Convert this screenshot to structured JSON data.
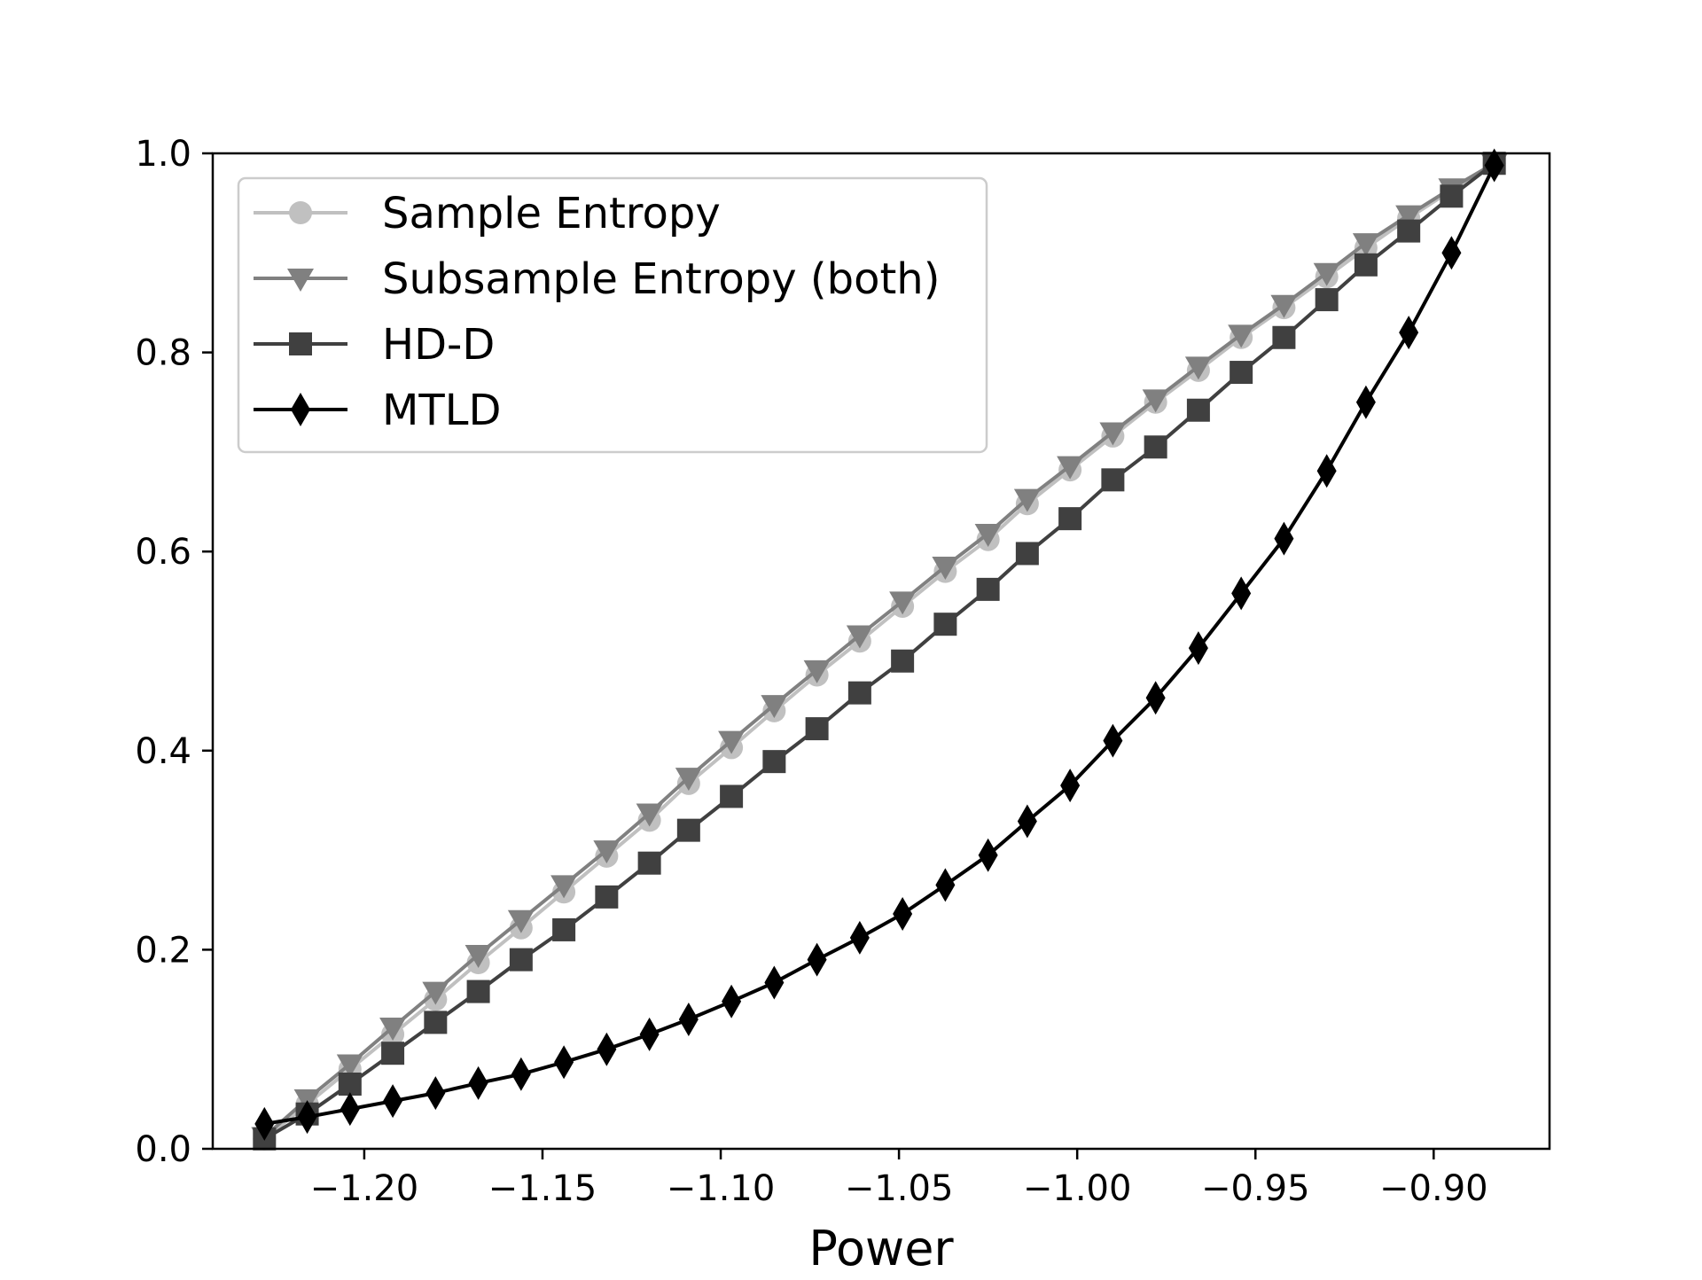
{
  "chart_data": {
    "type": "line",
    "title": "",
    "xlabel": "Power",
    "ylabel": "",
    "xlim": [
      -1.2425,
      -0.8675
    ],
    "ylim": [
      0.0,
      1.0
    ],
    "x_ticks": [
      -1.2,
      -1.15,
      -1.1,
      -1.05,
      -1.0,
      -0.95,
      -0.9
    ],
    "x_tick_labels": [
      "−1.20",
      "−1.15",
      "−1.10",
      "−1.05",
      "−1.00",
      "−0.95",
      "−0.90"
    ],
    "y_ticks": [
      0.0,
      0.2,
      0.4,
      0.6,
      0.8,
      1.0
    ],
    "y_tick_labels": [
      "0.0",
      "0.2",
      "0.4",
      "0.6",
      "0.8",
      "1.0"
    ],
    "grid": false,
    "legend_position": "upper-left",
    "x": [
      -1.228,
      -1.216,
      -1.204,
      -1.192,
      -1.18,
      -1.168,
      -1.156,
      -1.144,
      -1.132,
      -1.12,
      -1.109,
      -1.097,
      -1.085,
      -1.073,
      -1.061,
      -1.049,
      -1.037,
      -1.025,
      -1.014,
      -1.002,
      -0.99,
      -0.978,
      -0.966,
      -0.954,
      -0.942,
      -0.93,
      -0.919,
      -0.907,
      -0.895,
      -0.883
    ],
    "series": [
      {
        "name": "Sample Entropy",
        "color": "#c0c0c0",
        "marker": "circle",
        "values": [
          0.01,
          0.045,
          0.08,
          0.115,
          0.15,
          0.187,
          0.222,
          0.258,
          0.294,
          0.33,
          0.367,
          0.403,
          0.44,
          0.476,
          0.51,
          0.545,
          0.58,
          0.612,
          0.648,
          0.682,
          0.716,
          0.75,
          0.782,
          0.815,
          0.845,
          0.876,
          0.905,
          0.935,
          0.963,
          0.99
        ]
      },
      {
        "name": "Subsample Entropy (both)",
        "color": "#808080",
        "marker": "triangle-down",
        "values": [
          0.012,
          0.05,
          0.085,
          0.122,
          0.158,
          0.195,
          0.23,
          0.265,
          0.3,
          0.337,
          0.373,
          0.41,
          0.446,
          0.481,
          0.516,
          0.55,
          0.585,
          0.618,
          0.653,
          0.686,
          0.72,
          0.753,
          0.786,
          0.818,
          0.848,
          0.88,
          0.91,
          0.938,
          0.965,
          0.99
        ]
      },
      {
        "name": "HD-D",
        "color": "#404040",
        "marker": "square",
        "values": [
          0.01,
          0.035,
          0.065,
          0.096,
          0.127,
          0.158,
          0.19,
          0.22,
          0.253,
          0.287,
          0.32,
          0.354,
          0.389,
          0.422,
          0.458,
          0.49,
          0.527,
          0.562,
          0.598,
          0.633,
          0.672,
          0.705,
          0.742,
          0.78,
          0.815,
          0.853,
          0.888,
          0.922,
          0.957,
          0.99
        ]
      },
      {
        "name": "MTLD",
        "color": "#000000",
        "marker": "diamond",
        "values": [
          0.025,
          0.032,
          0.04,
          0.048,
          0.056,
          0.066,
          0.075,
          0.087,
          0.1,
          0.115,
          0.13,
          0.148,
          0.167,
          0.19,
          0.212,
          0.236,
          0.265,
          0.295,
          0.329,
          0.365,
          0.41,
          0.453,
          0.503,
          0.558,
          0.613,
          0.681,
          0.75,
          0.82,
          0.9,
          0.988
        ]
      }
    ]
  }
}
